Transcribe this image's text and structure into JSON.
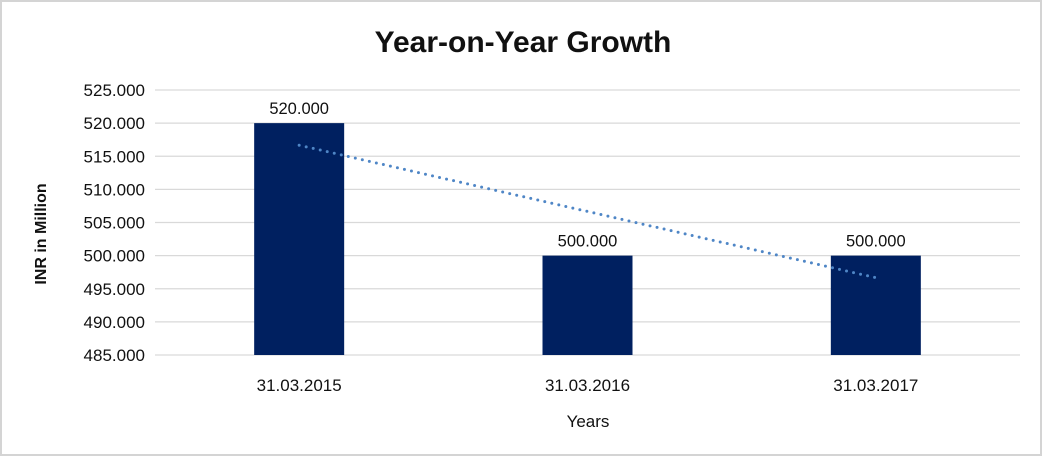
{
  "chart_data": {
    "type": "bar",
    "title": "Year-on-Year Growth",
    "xlabel": "Years",
    "ylabel": "INR in Million",
    "categories": [
      "31.03.2015",
      "31.03.2016",
      "31.03.2017"
    ],
    "values": [
      520000,
      500000,
      500000
    ],
    "data_labels": [
      "520.000",
      "500.000",
      "500.000"
    ],
    "y_ticks": [
      {
        "value": 525000,
        "label": "525.000"
      },
      {
        "value": 520000,
        "label": "520.000"
      },
      {
        "value": 515000,
        "label": "515.000"
      },
      {
        "value": 510000,
        "label": "510.000"
      },
      {
        "value": 505000,
        "label": "505.000"
      },
      {
        "value": 500000,
        "label": "500.000"
      },
      {
        "value": 495000,
        "label": "495.000"
      },
      {
        "value": 490000,
        "label": "490.000"
      },
      {
        "value": 485000,
        "label": "485.000"
      }
    ],
    "ylim": [
      485000,
      525000
    ],
    "gridlines": true,
    "legend": "none",
    "trendline": {
      "type": "linear",
      "style": "dotted",
      "start_value": 516667,
      "end_value": 496667
    },
    "colors": {
      "bar": "#002060",
      "trendline": "#4f86c6",
      "gridline": "#d9d9d9",
      "text": "#111111",
      "frame_border": "#d4d4d4"
    }
  }
}
